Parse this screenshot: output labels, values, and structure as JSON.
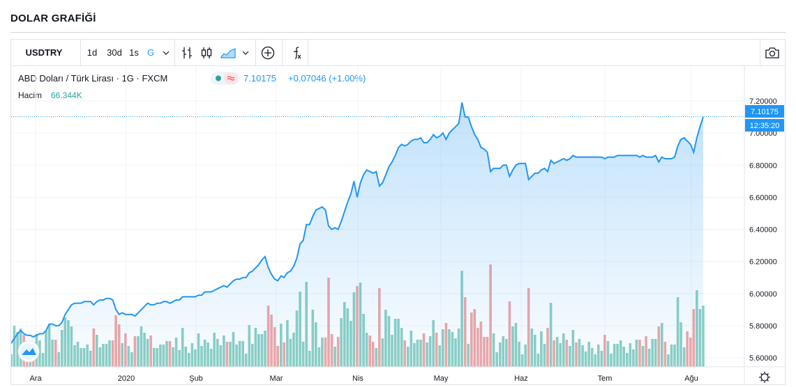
{
  "page": {
    "title": "DOLAR GRAFİĞİ"
  },
  "toolbar": {
    "symbol": "USDTRY",
    "intervals": [
      "1d",
      "30d",
      "1s",
      "G"
    ],
    "active_interval": "G",
    "icons": [
      "bar-style-icon",
      "candle-style-icon",
      "area-style-icon",
      "add-compare-icon",
      "indicators-icon",
      "camera-icon"
    ]
  },
  "legend": {
    "title": "ABD Doları / Türk Lirası · 1G · FXCM",
    "price": "7.10175",
    "change": "+0.07046 (+1.00%)",
    "volume_label": "Hacim",
    "volume_value": "66.344K"
  },
  "price_axis": {
    "last_price_label": "7.10175",
    "time_label": "12:35:20"
  },
  "colors": {
    "line": "#2196f3",
    "vol_up": "#8ccfc4",
    "vol_down": "#f0a6a6",
    "label_bg": "#2196f3"
  },
  "chart_data": {
    "type": "area",
    "title": "",
    "xlabel": "",
    "ylabel": "",
    "x_ticks": [
      "Ara",
      "2020",
      "Şub",
      "Mar",
      "Nis",
      "May",
      "Haz",
      "Tem",
      "Ağu"
    ],
    "y_ticks": [
      "5.60000",
      "5.80000",
      "6.00000",
      "6.20000",
      "6.40000",
      "6.60000",
      "6.80000",
      "7.00000",
      "7.20000"
    ],
    "ylim": [
      5.6,
      7.2
    ],
    "grid": true,
    "series": [
      {
        "values": [
          5.69,
          5.72,
          5.75,
          5.77,
          5.75,
          5.74,
          5.74,
          5.73,
          5.74,
          5.75,
          5.75,
          5.77,
          5.81,
          5.81,
          5.8,
          5.8,
          5.82,
          5.87,
          5.9,
          5.93,
          5.94,
          5.94,
          5.94,
          5.95,
          5.95,
          5.95,
          5.93,
          5.95,
          5.96,
          5.96,
          5.97,
          5.97,
          5.96,
          5.9,
          5.87,
          5.88,
          5.87,
          5.87,
          5.87,
          5.86,
          5.88,
          5.9,
          5.92,
          5.94,
          5.93,
          5.93,
          5.94,
          5.94,
          5.95,
          5.95,
          5.94,
          5.95,
          5.96,
          5.96,
          5.98,
          5.98,
          5.98,
          5.98,
          5.98,
          5.99,
          5.99,
          6.01,
          6.01,
          6.01,
          6.02,
          6.03,
          6.04,
          6.05,
          6.04,
          6.06,
          6.08,
          6.09,
          6.09,
          6.1,
          6.1,
          6.13,
          6.14,
          6.16,
          6.18,
          6.21,
          6.23,
          6.16,
          6.12,
          6.09,
          6.08,
          6.11,
          6.1,
          6.13,
          6.14,
          6.17,
          6.22,
          6.31,
          6.33,
          6.43,
          6.43,
          6.48,
          6.52,
          6.53,
          6.54,
          6.52,
          6.42,
          6.4,
          6.41,
          6.4,
          6.45,
          6.51,
          6.57,
          6.62,
          6.7,
          6.6,
          6.69,
          6.74,
          6.77,
          6.76,
          6.75,
          6.76,
          6.67,
          6.69,
          6.74,
          6.79,
          6.82,
          6.86,
          6.91,
          6.93,
          6.92,
          6.93,
          6.95,
          6.96,
          6.96,
          6.97,
          6.94,
          6.94,
          6.96,
          6.99,
          6.97,
          6.98,
          7.0,
          6.96,
          7.0,
          7.02,
          7.04,
          7.06,
          7.19,
          7.1,
          7.1,
          7.04,
          6.99,
          6.96,
          6.91,
          6.9,
          6.88,
          6.76,
          6.78,
          6.78,
          6.78,
          6.8,
          6.8,
          6.73,
          6.77,
          6.8,
          6.81,
          6.81,
          6.81,
          6.71,
          6.73,
          6.75,
          6.75,
          6.77,
          6.78,
          6.76,
          6.83,
          6.81,
          6.82,
          6.83,
          6.84,
          6.83,
          6.84,
          6.86,
          6.85,
          6.85,
          6.85,
          6.85,
          6.85,
          6.85,
          6.85,
          6.85,
          6.85,
          6.84,
          6.85,
          6.85,
          6.85,
          6.86,
          6.86,
          6.86,
          6.86,
          6.86,
          6.86,
          6.86,
          6.85,
          6.86,
          6.85,
          6.85,
          6.85,
          6.86,
          6.82,
          6.85,
          6.84,
          6.84,
          6.84,
          6.85,
          6.92,
          6.96,
          6.97,
          6.95,
          6.93,
          6.88,
          6.97,
          7.04,
          7.1
        ]
      }
    ]
  }
}
